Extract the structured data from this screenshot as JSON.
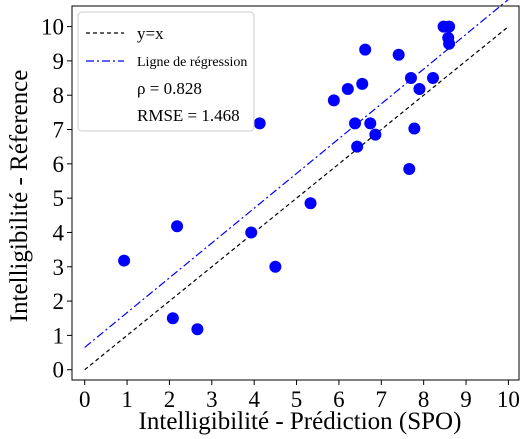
{
  "chart_data": {
    "type": "scatter",
    "xlabel": "Intelligibilité - Prédiction (SPO)",
    "ylabel": "Intelligibilité - Réference",
    "xlim": [
      -0.3,
      10.25
    ],
    "ylim": [
      -0.3,
      10.6
    ],
    "xticks": [
      0,
      1,
      2,
      3,
      4,
      5,
      6,
      7,
      8,
      9,
      10
    ],
    "yticks": [
      0,
      1,
      2,
      3,
      4,
      5,
      6,
      7,
      8,
      9,
      10
    ],
    "grid": false,
    "legend_position": "top-left",
    "points_color": "#0000ff",
    "points": [
      {
        "x": 0.93,
        "y": 3.18
      },
      {
        "x": 2.08,
        "y": 1.5
      },
      {
        "x": 2.18,
        "y": 4.18
      },
      {
        "x": 2.66,
        "y": 1.18
      },
      {
        "x": 3.93,
        "y": 4.0
      },
      {
        "x": 4.13,
        "y": 7.18
      },
      {
        "x": 4.5,
        "y": 3.0
      },
      {
        "x": 5.33,
        "y": 4.85
      },
      {
        "x": 5.88,
        "y": 7.85
      },
      {
        "x": 6.21,
        "y": 8.18
      },
      {
        "x": 6.38,
        "y": 7.18
      },
      {
        "x": 6.43,
        "y": 6.5
      },
      {
        "x": 6.55,
        "y": 8.33
      },
      {
        "x": 6.62,
        "y": 9.33
      },
      {
        "x": 6.74,
        "y": 7.18
      },
      {
        "x": 6.86,
        "y": 6.85
      },
      {
        "x": 7.41,
        "y": 9.18
      },
      {
        "x": 7.66,
        "y": 5.85
      },
      {
        "x": 7.7,
        "y": 8.5
      },
      {
        "x": 7.78,
        "y": 7.03
      },
      {
        "x": 7.9,
        "y": 8.18
      },
      {
        "x": 8.22,
        "y": 8.5
      },
      {
        "x": 8.47,
        "y": 10.0
      },
      {
        "x": 8.58,
        "y": 9.67
      },
      {
        "x": 8.6,
        "y": 10.0
      },
      {
        "x": 8.6,
        "y": 9.5
      }
    ],
    "lines": [
      {
        "name": "y=x",
        "color": "#000000",
        "style": "dashed",
        "x": [
          0,
          10
        ],
        "y": [
          0,
          10
        ]
      },
      {
        "name": "Ligne de régression",
        "color": "#0000ff",
        "style": "dashdot",
        "x": [
          0,
          10
        ],
        "y": [
          0.65,
          10.79
        ]
      }
    ],
    "legend": {
      "entries": [
        "y=x",
        "Ligne de régression"
      ],
      "stats": [
        "ρ = 0.828",
        "RMSE = 1.468"
      ]
    }
  }
}
